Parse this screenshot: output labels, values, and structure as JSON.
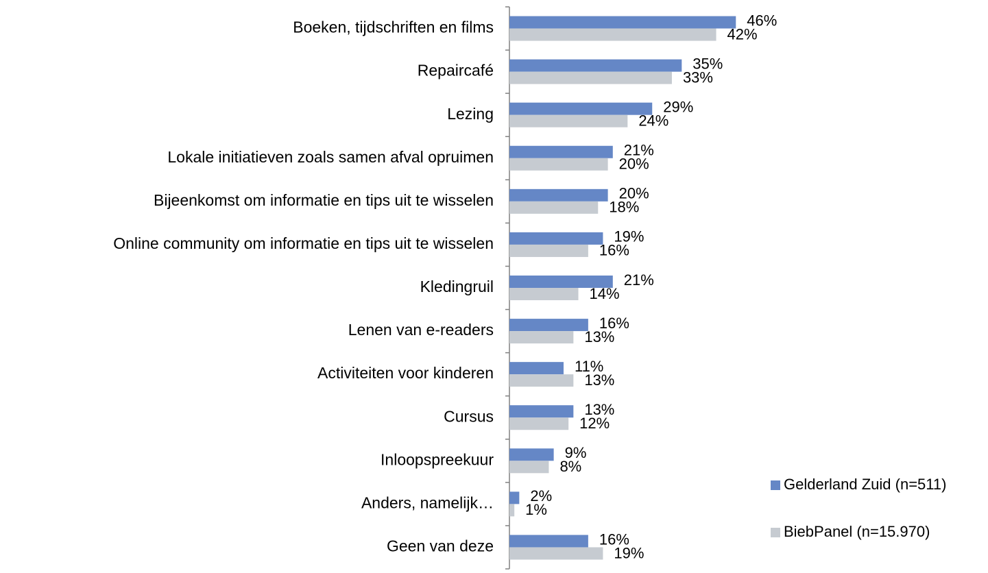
{
  "chart_data": {
    "type": "barh",
    "categories": [
      "Boeken, tijdschriften en films",
      "Repaircafé",
      "Lezing",
      "Lokale initiatieven zoals samen afval opruimen",
      "Bijeenkomst om informatie en tips uit te wisselen",
      "Online community om informatie en tips uit te wisselen",
      "Kledingruil",
      "Lenen van e-readers",
      "Activiteiten voor kinderen",
      "Cursus",
      "Inloopspreekuur",
      "Anders, namelijk…",
      "Geen van deze"
    ],
    "series": [
      {
        "name": "Gelderland Zuid (n=511)",
        "color": "#6587c6",
        "values": [
          46,
          35,
          29,
          21,
          20,
          19,
          21,
          16,
          11,
          13,
          9,
          2,
          16
        ],
        "value_labels": [
          "46%",
          "35%",
          "29%",
          "21%",
          "20%",
          "19%",
          "21%",
          "16%",
          "11%",
          "13%",
          "9%",
          "2%",
          "16%"
        ]
      },
      {
        "name": "BiebPanel (n=15.970)",
        "color": "#c6cbd1",
        "values": [
          42,
          33,
          24,
          20,
          18,
          16,
          14,
          13,
          13,
          12,
          8,
          1,
          19
        ],
        "value_labels": [
          "42%",
          "33%",
          "24%",
          "20%",
          "18%",
          "16%",
          "14%",
          "13%",
          "13%",
          "12%",
          "8%",
          "1%",
          "19%"
        ]
      }
    ],
    "legend": "right"
  }
}
